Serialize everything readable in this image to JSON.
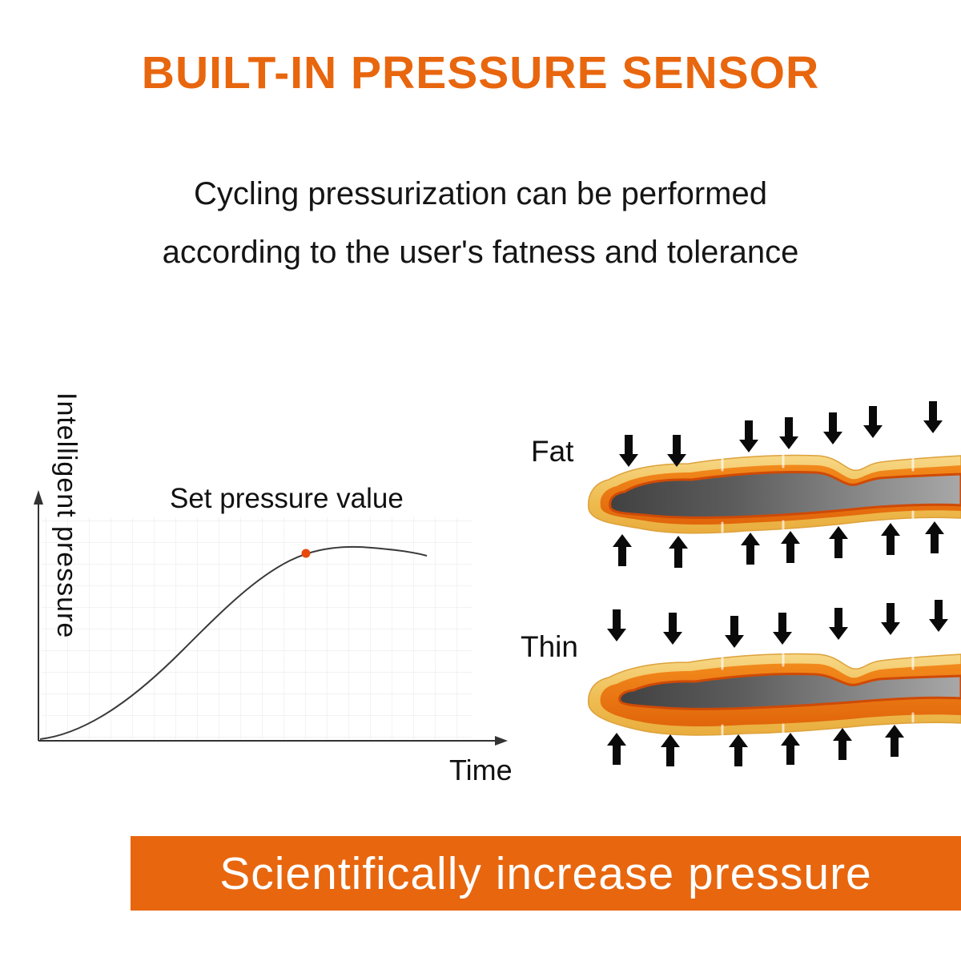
{
  "header": {
    "title": "BUILT-IN PRESSURE SENSOR",
    "subtitle_line1": "Cycling pressurization can be performed",
    "subtitle_line2": "according to the user's fatness and tolerance"
  },
  "chart": {
    "y_axis_label": "Intelligent pressure",
    "x_axis_label": "Time",
    "annotation": "Set pressure value"
  },
  "legs": {
    "fat_label": "Fat",
    "thin_label": "Thin"
  },
  "banner": {
    "text": "Scientifically increase pressure"
  },
  "colors": {
    "accent_orange": "#e8660e",
    "marker_dot": "#e8480c",
    "wrap_yellow": "#efc159",
    "wrap_orange": "#e66c0d",
    "leg_outline_red": "#cf4a06",
    "leg_gray": "#5c5c5c",
    "arrow_black": "#0a0a0a",
    "text_black": "#151515",
    "grid_gray": "#ebebeb",
    "background": "#ffffff"
  },
  "icons": {
    "pressure_arrow_down": "solid black downward arrow",
    "pressure_arrow_up": "solid black upward arrow"
  },
  "chart_data": {
    "type": "line",
    "title": "",
    "xlabel": "Time",
    "ylabel": "Intelligent pressure",
    "x_units": "qualitative (no tick values shown)",
    "y_units": "qualitative (no tick values shown)",
    "x": [
      0,
      1,
      2,
      3,
      4,
      5,
      6,
      7,
      8,
      9,
      10
    ],
    "y": [
      0,
      0.04,
      0.12,
      0.26,
      0.46,
      0.66,
      0.82,
      0.92,
      0.96,
      0.97,
      0.94
    ],
    "annotations": [
      {
        "label": "Set pressure value",
        "x": 6.6,
        "y": 0.93,
        "marker": "orange dot on curve"
      }
    ],
    "grid": true,
    "legend": "none"
  }
}
